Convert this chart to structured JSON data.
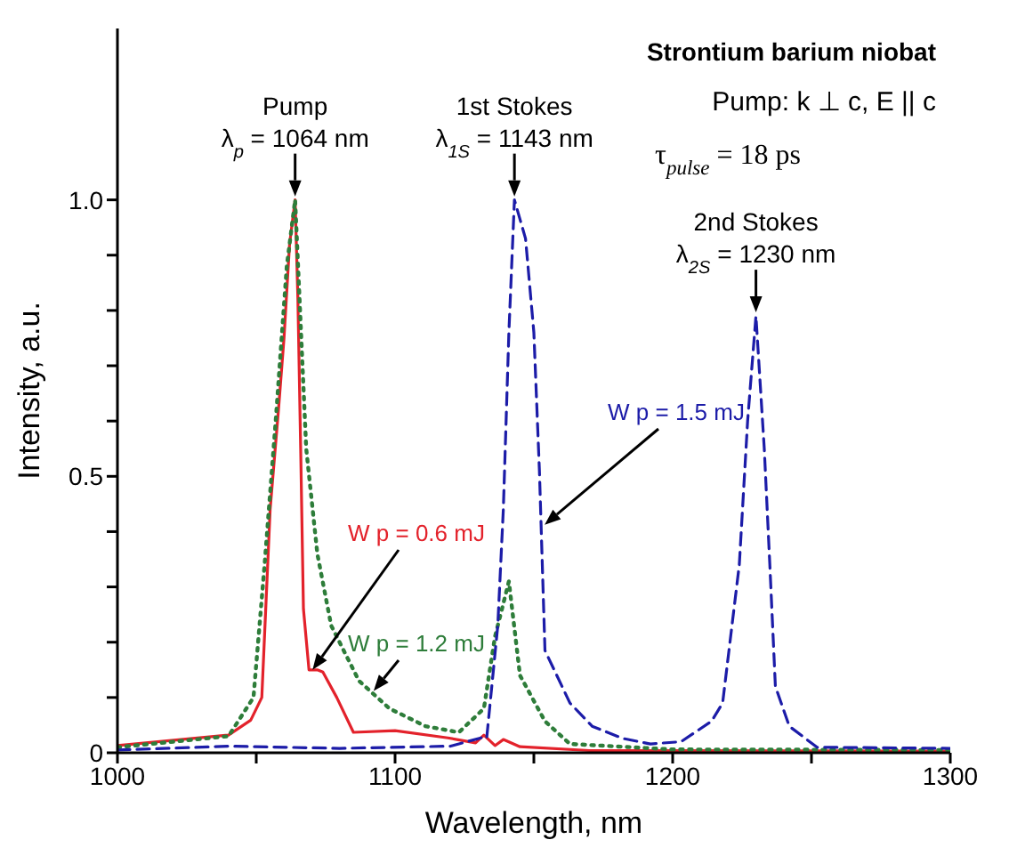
{
  "chart_data": {
    "type": "line",
    "xlabel": "Wavelength, nm",
    "ylabel": "Intensity, a.u.",
    "annotations": [
      "Strontium barium niobat",
      "Pump:  k ⊥ c,  E || c",
      "τ$_{pulse}$ = 18 ps",
      {
        "text": "Pump\nλ$_{p}$ = 1064 nm",
        "x": 1064,
        "y": 1.0
      },
      {
        "text": "1st Stokes\nλ$_{1S}$ = 1143 nm",
        "x": 1143,
        "y": 1.0
      },
      {
        "text": "2nd Stokes\nλ$_{2S}$ = 1230 nm",
        "x": 1230,
        "y": 0.79
      }
    ],
    "xlim": [
      1000,
      1300
    ],
    "xticks": [
      1000,
      {
        "value": 1050,
        "label": null
      },
      1100,
      {
        "value": 1150,
        "label": null
      },
      1200,
      {
        "value": 1250,
        "label": null
      },
      1300
    ],
    "ylim": [
      0,
      1.31
    ],
    "yticks": [
      0,
      {
        "value": 0.1,
        "label": null
      },
      {
        "value": 0.2,
        "label": null
      },
      {
        "value": 0.3,
        "label": null
      },
      {
        "value": 0.4,
        "label": null
      },
      {
        "value": 0.5,
        "label": "0.5"
      },
      {
        "value": 0.6,
        "label": null
      },
      {
        "value": 0.7,
        "label": null
      },
      {
        "value": 0.8,
        "label": null
      },
      {
        "value": 0.9,
        "label": null
      },
      {
        "value": 1.0,
        "label": "1.0"
      }
    ],
    "grid": false,
    "marker": "none",
    "series": [
      {
        "name": "W p = 0.6  mJ",
        "color": "#e3222b",
        "line_style": "solid",
        "x": [
          1000,
          1040,
          1048,
          1052,
          1055,
          1058,
          1060,
          1062,
          1064,
          1065,
          1066,
          1067,
          1069,
          1072,
          1074,
          1079,
          1085,
          1100,
          1119,
          1129,
          1132,
          1136,
          1139,
          1145,
          1170,
          1300
        ],
        "values": [
          0.013,
          0.032,
          0.059,
          0.1,
          0.44,
          0.62,
          0.75,
          0.92,
          1.0,
          0.82,
          0.55,
          0.26,
          0.15,
          0.15,
          0.146,
          0.1,
          0.037,
          0.04,
          0.027,
          0.018,
          0.032,
          0.013,
          0.024,
          0.011,
          0.004,
          0.003
        ]
      },
      {
        "name": "W p = 1.2  mJ",
        "color": "#2e7d3a",
        "line_style": "dotted",
        "x": [
          1000,
          1040,
          1049,
          1053,
          1057,
          1061,
          1064,
          1068,
          1072,
          1077,
          1087,
          1098,
          1111,
          1123,
          1132,
          1136,
          1141,
          1145,
          1154,
          1163,
          1200,
          1300
        ],
        "values": [
          0.01,
          0.03,
          0.1,
          0.34,
          0.6,
          0.88,
          1.0,
          0.55,
          0.36,
          0.23,
          0.13,
          0.08,
          0.048,
          0.037,
          0.08,
          0.21,
          0.31,
          0.14,
          0.057,
          0.016,
          0.006,
          0.005
        ]
      },
      {
        "name": "W p = 1.5  mJ",
        "color": "#1c1ca8",
        "line_style": "dashed",
        "x": [
          1000,
          1040,
          1080,
          1120,
          1131,
          1133,
          1137,
          1139,
          1141,
          1143,
          1147,
          1150,
          1152,
          1154,
          1163,
          1171,
          1182,
          1192,
          1203,
          1214,
          1218,
          1224,
          1227,
          1230,
          1233,
          1235,
          1237,
          1242,
          1252,
          1300
        ],
        "values": [
          0.005,
          0.012,
          0.008,
          0.012,
          0.027,
          0.026,
          0.23,
          0.44,
          0.76,
          1.0,
          0.93,
          0.76,
          0.51,
          0.185,
          0.09,
          0.048,
          0.026,
          0.016,
          0.02,
          0.057,
          0.09,
          0.34,
          0.6,
          0.79,
          0.55,
          0.34,
          0.12,
          0.048,
          0.01,
          0.008
        ]
      }
    ]
  }
}
